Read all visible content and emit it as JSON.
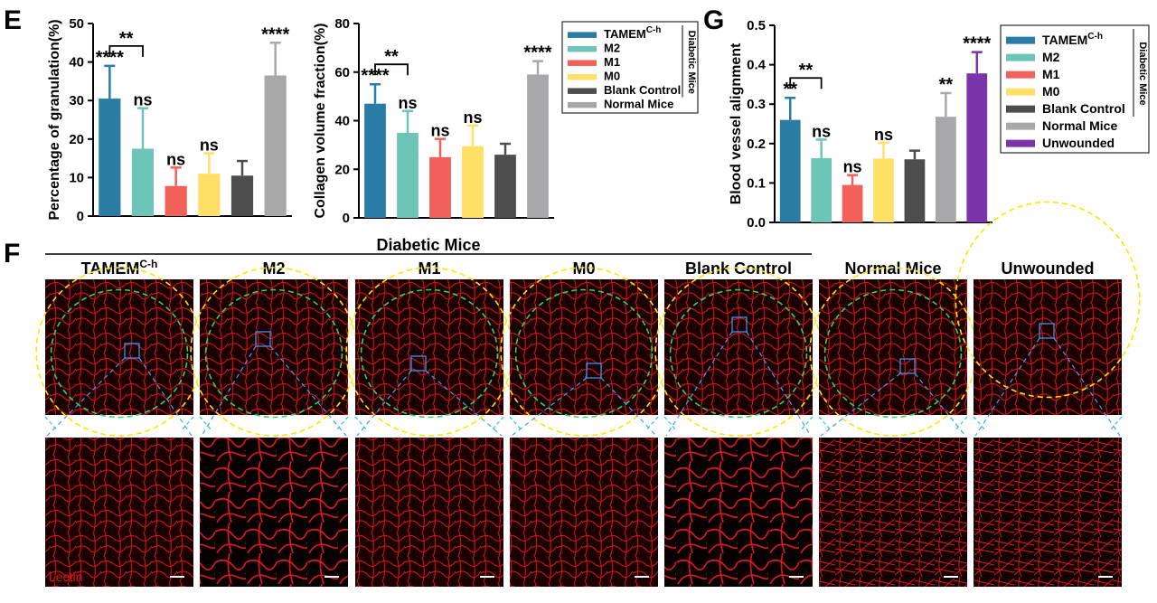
{
  "panels": {
    "e": "E",
    "f": "F",
    "g": "G"
  },
  "colors": {
    "TAMEM": "#2a7ca6",
    "M2": "#6dc5b7",
    "M1": "#f2605a",
    "M0": "#ffe066",
    "Blank Control": "#4d4d4d",
    "Normal Mice": "#a8a8ab",
    "Unwounded": "#7a33a8"
  },
  "chart_data": [
    {
      "type": "bar",
      "panel": "E-left",
      "ylabel": "Percentage of granulation(%)",
      "ylim": [
        0,
        50
      ],
      "yticks": [
        "0",
        "10",
        "20",
        "30",
        "40",
        "50"
      ],
      "categories": [
        "TAMEM C-h",
        "M2",
        "M1",
        "M0",
        "Blank Control",
        "Normal Mice"
      ],
      "values": [
        30.5,
        17.5,
        7.8,
        11.0,
        10.5,
        36.5
      ],
      "errors": [
        8.5,
        10.5,
        4.8,
        5.3,
        3.8,
        8.5
      ],
      "sig": [
        "****",
        "ns",
        "ns",
        "ns",
        "",
        "****"
      ],
      "bracket": {
        "from": 0,
        "to": 1,
        "label": "**"
      }
    },
    {
      "type": "bar",
      "panel": "E-right",
      "ylabel": "Collagen volume fraction(%)",
      "ylim": [
        0,
        80
      ],
      "yticks": [
        "0",
        "20",
        "40",
        "60",
        "80"
      ],
      "categories": [
        "TAMEM C-h",
        "M2",
        "M1",
        "M0",
        "Blank Control",
        "Normal Mice"
      ],
      "values": [
        47.0,
        35.0,
        25.0,
        29.5,
        26.0,
        59.0
      ],
      "errors": [
        8.0,
        9.0,
        7.5,
        8.5,
        4.5,
        5.5
      ],
      "sig": [
        "****",
        "ns",
        "ns",
        "ns",
        "",
        "****"
      ],
      "bracket": {
        "from": 0,
        "to": 1,
        "label": "**"
      }
    },
    {
      "type": "bar",
      "panel": "G",
      "ylabel": "Blood vessel alignment",
      "ylim": [
        0,
        0.5
      ],
      "yticks": [
        "0.0",
        "0.1",
        "0.2",
        "0.3",
        "0.4",
        "0.5"
      ],
      "categories": [
        "TAMEM C-h",
        "M2",
        "M1",
        "M0",
        "Blank Control",
        "Normal Mice",
        "Unwounded"
      ],
      "values": [
        0.26,
        0.163,
        0.095,
        0.162,
        0.16,
        0.268,
        0.378
      ],
      "errors": [
        0.056,
        0.047,
        0.025,
        0.04,
        0.022,
        0.06,
        0.054
      ],
      "sig": [
        "**",
        "ns",
        "ns",
        "ns",
        "",
        "**",
        "****"
      ],
      "bracket": {
        "from": 0,
        "to": 1,
        "label": "**"
      }
    }
  ],
  "legend_e": {
    "items": [
      {
        "main": "TAMEM",
        "sup": "C-h",
        "key": "TAMEM"
      },
      {
        "main": "M2",
        "sup": "",
        "key": "M2"
      },
      {
        "main": "M1",
        "sup": "",
        "key": "M1"
      },
      {
        "main": "M0",
        "sup": "",
        "key": "M0"
      },
      {
        "main": "Blank Control",
        "sup": "",
        "key": "Blank Control"
      },
      {
        "main": "Normal Mice",
        "sup": "",
        "key": "Normal Mice"
      }
    ],
    "side_label": "Diabetic Mice"
  },
  "legend_g": {
    "items": [
      {
        "main": "TAMEM",
        "sup": "C-h",
        "key": "TAMEM"
      },
      {
        "main": "M2",
        "sup": "",
        "key": "M2"
      },
      {
        "main": "M1",
        "sup": "",
        "key": "M1"
      },
      {
        "main": "M0",
        "sup": "",
        "key": "M0"
      },
      {
        "main": "Blank Control",
        "sup": "",
        "key": "Blank Control"
      },
      {
        "main": "Normal Mice",
        "sup": "",
        "key": "Normal Mice"
      },
      {
        "main": "Unwounded",
        "sup": "",
        "key": "Unwounded"
      }
    ],
    "side_label": "Diabetic Mice"
  },
  "micrographs": {
    "group_label": "Diabetic Mice",
    "columns": [
      {
        "main": "TAMEM",
        "sup": "C-h"
      },
      {
        "main": "M2",
        "sup": ""
      },
      {
        "main": "M1",
        "sup": ""
      },
      {
        "main": "M0",
        "sup": ""
      },
      {
        "main": "Blank Control",
        "sup": ""
      },
      {
        "main": "Normal Mice",
        "sup": ""
      },
      {
        "main": "Unwounded",
        "sup": ""
      }
    ],
    "stain_label": "Lectin"
  }
}
